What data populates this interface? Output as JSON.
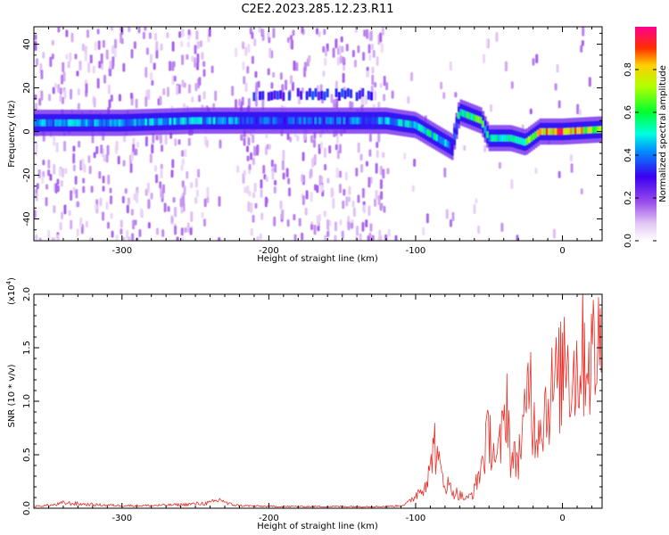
{
  "title": "C2E2.2023.285.12.23.R11",
  "chart_data": [
    {
      "type": "heatmap",
      "xlabel": "Height of straight line (km)",
      "ylabel": "Frequency (Hz)",
      "xlim": [
        -360,
        27
      ],
      "ylim": [
        -50,
        48
      ],
      "xticks": [
        -300,
        -200,
        -100,
        0
      ],
      "yticks": [
        -40,
        -20,
        0,
        20,
        40
      ],
      "colorbar": {
        "label": "Normalized spectral amplitude",
        "range": [
          0.0,
          1.0
        ],
        "ticks": [
          0.0,
          0.2,
          0.4,
          0.6,
          0.8
        ],
        "tick_labels": [
          "0.0",
          "0.2",
          "0.4",
          "0.6",
          "0.8"
        ],
        "colormap": "white-purple-blue-cyan-green-yellow-red-magenta"
      },
      "ridge": [
        {
          "x": -360,
          "freq": 4,
          "amp": 0.45
        },
        {
          "x": -300,
          "freq": 4,
          "amp": 0.45
        },
        {
          "x": -250,
          "freq": 5,
          "amp": 0.48
        },
        {
          "x": -200,
          "freq": 5,
          "amp": 0.4
        },
        {
          "x": -150,
          "freq": 5,
          "amp": 0.4
        },
        {
          "x": -120,
          "freq": 5,
          "amp": 0.45
        },
        {
          "x": -100,
          "freq": 3,
          "amp": 0.55
        },
        {
          "x": -85,
          "freq": -3,
          "amp": 0.55
        },
        {
          "x": -75,
          "freq": -7,
          "amp": 0.4
        },
        {
          "x": -70,
          "freq": 9,
          "amp": 0.55
        },
        {
          "x": -55,
          "freq": 5,
          "amp": 0.65
        },
        {
          "x": -50,
          "freq": -3,
          "amp": 0.5
        },
        {
          "x": -35,
          "freq": -3,
          "amp": 0.6
        },
        {
          "x": -25,
          "freq": -5,
          "amp": 0.6
        },
        {
          "x": -15,
          "freq": 0,
          "amp": 0.85
        },
        {
          "x": 0,
          "freq": 0,
          "amp": 0.95
        },
        {
          "x": 27,
          "freq": 1,
          "amp": 0.7
        }
      ],
      "secondary_band": [
        {
          "x": -210,
          "freq": 17,
          "amp": 0.35
        },
        {
          "x": -130,
          "freq": 17,
          "amp": 0.35
        }
      ]
    },
    {
      "type": "line",
      "xlabel": "Height of straight line (km)",
      "ylabel": "SNR (10 * v/v)",
      "yscale_label": "(x10",
      "yscale_exp": "4",
      "yscale_close": ")",
      "xlim": [
        -360,
        27
      ],
      "ylim": [
        0,
        2.0
      ],
      "xticks": [
        -300,
        -200,
        -100,
        0
      ],
      "yticks": [
        0.0,
        0.5,
        1.0,
        1.5,
        2.0
      ],
      "ytick_labels": [
        "0.0",
        "0.5",
        "1.0",
        "1.5",
        "2.0"
      ],
      "color": "#e8312a",
      "series": [
        {
          "x": [
            -360,
            -345,
            -340,
            -320,
            -300,
            -280,
            -260,
            -240,
            -232,
            -228,
            -220,
            -200,
            -180,
            -160,
            -140,
            -120,
            -110,
            -105,
            -100,
            -95,
            -90,
            -88,
            -85,
            -80,
            -75,
            -70,
            -65,
            -60,
            -55,
            -50,
            -47,
            -45,
            -40,
            -38,
            -35,
            -30,
            -25,
            -22,
            -20,
            -15,
            -10,
            -5,
            0,
            2,
            5,
            10,
            15,
            20,
            25,
            27
          ],
          "values": [
            0.02,
            0.04,
            0.06,
            0.04,
            0.03,
            0.03,
            0.04,
            0.06,
            0.1,
            0.05,
            0.03,
            0.02,
            0.02,
            0.02,
            0.02,
            0.02,
            0.03,
            0.06,
            0.15,
            0.25,
            0.4,
            0.85,
            0.5,
            0.3,
            0.2,
            0.15,
            0.1,
            0.2,
            0.5,
            0.85,
            0.7,
            0.5,
            0.9,
            1.35,
            0.5,
            0.6,
            1.0,
            1.65,
            0.9,
            1.0,
            1.2,
            1.4,
            1.5,
            2.0,
            1.5,
            1.6,
            1.8,
            1.7,
            1.85,
            1.8
          ]
        }
      ]
    }
  ]
}
